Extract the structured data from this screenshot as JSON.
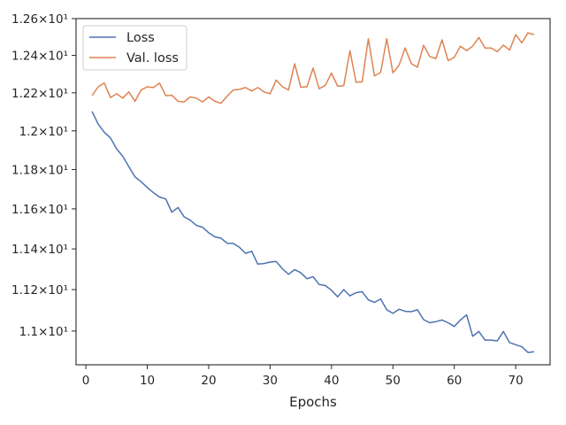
{
  "chart_data": {
    "type": "line",
    "title": "",
    "xlabel": "Epochs",
    "ylabel": "",
    "xlim": [
      -1.6,
      75.6
    ],
    "ylim": [
      10.84,
      12.6
    ],
    "yscale": "log",
    "grid": false,
    "legend_position": "top-left",
    "xticks": [
      0,
      10,
      20,
      30,
      40,
      50,
      60,
      70
    ],
    "xtick_labels": [
      "0",
      "10",
      "20",
      "30",
      "40",
      "50",
      "60",
      "70"
    ],
    "yticks": [
      11.0,
      11.2,
      11.4,
      11.6,
      11.8,
      12.0,
      12.2,
      12.4,
      12.6
    ],
    "ytick_labels": [
      "1.1×10¹",
      "1.12×10¹",
      "1.14×10¹",
      "1.16×10¹",
      "1.18×10¹",
      "1.2×10¹",
      "1.22×10¹",
      "1.24×10¹",
      "1.26×10¹"
    ],
    "x": [
      1,
      2,
      3,
      4,
      5,
      6,
      7,
      8,
      9,
      10,
      11,
      12,
      13,
      14,
      15,
      16,
      17,
      18,
      19,
      20,
      21,
      22,
      23,
      24,
      25,
      26,
      27,
      28,
      29,
      30,
      31,
      32,
      33,
      34,
      35,
      36,
      37,
      38,
      39,
      40,
      41,
      42,
      43,
      44,
      45,
      46,
      47,
      48,
      49,
      50,
      51,
      52,
      53,
      54,
      55,
      56,
      57,
      58,
      59,
      60,
      61,
      62,
      63,
      64,
      65,
      66,
      67,
      68,
      69,
      70,
      71,
      72,
      73
    ],
    "series": [
      {
        "name": "Loss",
        "color": "#4c72b0",
        "values": [
          12.102,
          12.035,
          11.993,
          11.963,
          11.907,
          11.868,
          11.815,
          11.762,
          11.738,
          11.708,
          11.682,
          11.66,
          11.65,
          11.583,
          11.607,
          11.56,
          11.543,
          11.517,
          11.508,
          11.48,
          11.46,
          11.453,
          11.428,
          11.427,
          11.408,
          11.378,
          11.388,
          11.325,
          11.328,
          11.335,
          11.338,
          11.302,
          11.275,
          11.298,
          11.282,
          11.253,
          11.263,
          11.225,
          11.22,
          11.197,
          11.165,
          11.2,
          11.17,
          11.185,
          11.19,
          11.15,
          11.138,
          11.155,
          11.102,
          11.085,
          11.105,
          11.095,
          11.093,
          11.102,
          11.055,
          11.04,
          11.045,
          11.053,
          11.04,
          11.022,
          11.053,
          11.078,
          10.975,
          10.998,
          10.957,
          10.957,
          10.953,
          10.998,
          10.945,
          10.935,
          10.925,
          10.898,
          10.902
        ]
      },
      {
        "name": "Val. loss",
        "color": "#dd8452",
        "values": [
          12.185,
          12.232,
          12.252,
          12.175,
          12.195,
          12.172,
          12.205,
          12.155,
          12.215,
          12.232,
          12.228,
          12.252,
          12.185,
          12.187,
          12.155,
          12.152,
          12.178,
          12.172,
          12.152,
          12.178,
          12.155,
          12.145,
          12.182,
          12.215,
          12.218,
          12.228,
          12.21,
          12.228,
          12.205,
          12.195,
          12.268,
          12.232,
          12.215,
          12.355,
          12.23,
          12.232,
          12.332,
          12.222,
          12.24,
          12.306,
          12.235,
          12.238,
          12.425,
          12.256,
          12.258,
          12.49,
          12.29,
          12.308,
          12.49,
          12.306,
          12.347,
          12.44,
          12.356,
          12.336,
          12.455,
          12.394,
          12.383,
          12.484,
          12.372,
          12.39,
          12.45,
          12.426,
          12.45,
          12.497,
          12.44,
          12.44,
          12.42,
          12.456,
          12.428,
          12.512,
          12.468,
          12.522,
          12.512
        ]
      }
    ]
  }
}
